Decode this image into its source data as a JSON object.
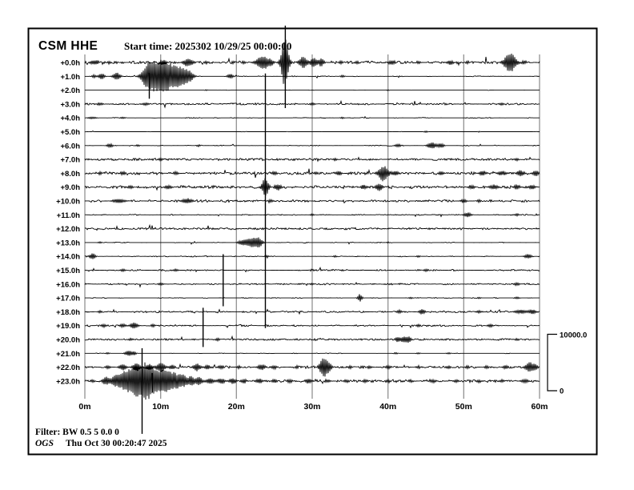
{
  "header": {
    "station": "CSM HHE",
    "start_time": "Start time: 2025302 10/29/25 00:00:00"
  },
  "scale_bar": {
    "max_label": "10000.0",
    "min_label": "0"
  },
  "footer": {
    "filter": "Filter: BW 0.5 5 0.0 0",
    "agency": "OGS",
    "generated": "Thu Oct 30 00:20:47 2025"
  },
  "colors": {
    "trace": "#000000",
    "grid": "#919191",
    "frame": "#000000",
    "background": "#ffffff"
  },
  "chart_data": {
    "type": "line",
    "subtype": "helicorder-24h",
    "title": "CSM HHE",
    "station": "CSM",
    "channel": "HHE",
    "start": "2025302 10/29/25 00:00:00",
    "x_axis": {
      "ticks": [
        "0m",
        "10m",
        "20m",
        "30m",
        "40m",
        "50m",
        "60m"
      ],
      "minutes_range": [
        0,
        60
      ],
      "grid": true
    },
    "scale": {
      "max": 10000.0,
      "min": 0
    },
    "rows": [
      {
        "label": "+0.0h",
        "amp": 1.4,
        "density": 0.9,
        "events": [
          [
            1,
            2.5,
            0.4
          ],
          [
            1.6,
            2.5,
            0.3
          ],
          [
            3.2,
            2,
            0.3
          ],
          [
            10.4,
            3,
            0.5
          ],
          [
            13.6,
            5,
            0.7
          ],
          [
            16,
            2,
            0.3
          ],
          [
            21,
            2,
            0.3
          ],
          [
            23.5,
            9,
            0.9
          ],
          [
            24.6,
            3,
            0.3
          ],
          [
            26.4,
            32,
            0.5
          ],
          [
            28.8,
            7,
            0.6
          ],
          [
            30.2,
            6,
            0.5
          ],
          [
            31.2,
            5,
            0.4
          ],
          [
            33.8,
            2.5,
            0.3
          ],
          [
            36,
            2,
            0.3
          ],
          [
            40.5,
            3,
            0.5
          ],
          [
            44,
            2,
            0.3
          ],
          [
            48.2,
            3,
            0.4
          ],
          [
            50.5,
            2,
            0.3
          ],
          [
            56.1,
            13,
            0.8
          ],
          [
            58,
            2.5,
            0.3
          ]
        ],
        "spikes": [
          [
            26.45,
            46,
            57
          ]
        ]
      },
      {
        "label": "+1.0h",
        "amp": 0.5,
        "density": 0.35,
        "events": [
          [
            1.2,
            2,
            0.3
          ],
          [
            2.2,
            4,
            0.4
          ],
          [
            4.2,
            5,
            0.5
          ],
          [
            8.2,
            10,
            0.8
          ],
          [
            9,
            12,
            1.0
          ],
          [
            10,
            11,
            0.9
          ],
          [
            10.8,
            12,
            0.9
          ],
          [
            11.8,
            9,
            0.8
          ],
          [
            12.8,
            10,
            0.8
          ],
          [
            13.8,
            6,
            0.6
          ],
          [
            19.2,
            3,
            0.4
          ],
          [
            34,
            1.5,
            0.3
          ]
        ],
        "spikes": [
          [
            8.5,
            4,
            28
          ]
        ]
      },
      {
        "label": "+2.0h",
        "amp": 0.25,
        "density": 0.08,
        "events": [
          [
            16,
            0.8,
            0.2
          ],
          [
            40,
            0.8,
            0.2
          ]
        ],
        "spikes": []
      },
      {
        "label": "+3.0h",
        "amp": 0.9,
        "density": 0.75,
        "events": [
          [
            2,
            1.5,
            0.5
          ],
          [
            8,
            1.5,
            0.5
          ],
          [
            30,
            1.5,
            0.4
          ],
          [
            55,
            1.5,
            0.4
          ]
        ],
        "spikes": []
      },
      {
        "label": "+4.0h",
        "amp": 0.45,
        "density": 0.3,
        "events": [
          [
            1,
            1.2,
            0.6
          ],
          [
            5,
            1,
            0.4
          ],
          [
            34,
            1,
            0.3
          ]
        ],
        "spikes": []
      },
      {
        "label": "+5.0h",
        "amp": 0.3,
        "density": 0.12,
        "events": [
          [
            45,
            1,
            0.3
          ],
          [
            52,
            0.8,
            0.2
          ]
        ],
        "spikes": []
      },
      {
        "label": "+6.0h",
        "amp": 0.5,
        "density": 0.3,
        "events": [
          [
            3.3,
            2.5,
            0.4
          ],
          [
            7,
            1.2,
            0.3
          ],
          [
            15,
            1.2,
            0.3
          ],
          [
            41.3,
            2,
            0.4
          ],
          [
            45.8,
            4,
            0.6
          ],
          [
            47,
            3,
            0.4
          ]
        ],
        "spikes": []
      },
      {
        "label": "+7.0h",
        "amp": 1.1,
        "density": 0.95,
        "events": [
          [
            10,
            1.5,
            0.4
          ],
          [
            33,
            1.5,
            0.3
          ],
          [
            57,
            1.5,
            0.3
          ]
        ],
        "spikes": []
      },
      {
        "label": "+8.0h",
        "amp": 1.5,
        "density": 0.9,
        "events": [
          [
            2,
            2,
            0.3
          ],
          [
            5,
            2.5,
            0.4
          ],
          [
            12,
            2,
            0.4
          ],
          [
            25,
            2.5,
            0.4
          ],
          [
            30.5,
            2,
            0.3
          ],
          [
            33.5,
            3,
            0.4
          ],
          [
            39.4,
            10,
            0.7
          ],
          [
            41,
            3,
            0.4
          ],
          [
            47,
            2.5,
            0.4
          ],
          [
            52.5,
            3,
            0.5
          ],
          [
            55,
            3,
            0.6
          ],
          [
            57.5,
            4,
            0.5
          ],
          [
            59.5,
            4,
            0.4
          ]
        ],
        "spikes": []
      },
      {
        "label": "+9.0h",
        "amp": 1.5,
        "density": 0.9,
        "events": [
          [
            6,
            2,
            0.4
          ],
          [
            11,
            2.5,
            0.5
          ],
          [
            23.8,
            12,
            0.45
          ],
          [
            25.5,
            4,
            0.5
          ],
          [
            36.8,
            3,
            0.4
          ],
          [
            38.8,
            5,
            0.5
          ],
          [
            51,
            2.5,
            0.5
          ],
          [
            54,
            3,
            0.6
          ],
          [
            57,
            3,
            0.5
          ],
          [
            59,
            3,
            0.4
          ]
        ],
        "spikes": [
          [
            23.82,
            142,
            176
          ]
        ]
      },
      {
        "label": "+10.0h",
        "amp": 1.1,
        "density": 0.8,
        "events": [
          [
            4.5,
            3,
            0.8
          ],
          [
            13.5,
            3.5,
            0.7
          ],
          [
            24.5,
            2,
            0.4
          ],
          [
            50,
            2.5,
            0.4
          ],
          [
            52,
            2,
            0.3
          ]
        ],
        "spikes": []
      },
      {
        "label": "+11.0h",
        "amp": 0.55,
        "density": 0.5,
        "events": [
          [
            30,
            1.2,
            0.3
          ],
          [
            50.5,
            3,
            0.5
          ],
          [
            57,
            1.5,
            0.3
          ]
        ],
        "spikes": []
      },
      {
        "label": "+12.0h",
        "amp": 1.0,
        "density": 0.97,
        "events": [],
        "spikes": []
      },
      {
        "label": "+13.0h",
        "amp": 0.45,
        "density": 0.25,
        "events": [
          [
            2,
            1,
            0.3
          ],
          [
            20.8,
            3,
            0.6
          ],
          [
            22,
            6,
            0.8
          ],
          [
            23,
            5,
            0.5
          ],
          [
            40,
            1,
            0.2
          ]
        ],
        "spikes": []
      },
      {
        "label": "+14.0h",
        "amp": 0.6,
        "density": 0.4,
        "events": [
          [
            1,
            4,
            0.4
          ],
          [
            24,
            1.5,
            0.3
          ],
          [
            33,
            1.2,
            0.3
          ],
          [
            44,
            1.2,
            0.3
          ],
          [
            58.5,
            3,
            0.5
          ]
        ],
        "spikes": []
      },
      {
        "label": "+15.0h",
        "amp": 0.8,
        "density": 0.55,
        "events": [
          [
            5,
            1.5,
            0.4
          ],
          [
            12,
            1.5,
            0.4
          ],
          [
            30,
            1.5,
            0.3
          ],
          [
            45,
            1.5,
            0.4
          ]
        ],
        "spikes": [
          [
            18.25,
            20,
            45
          ]
        ]
      },
      {
        "label": "+16.0h",
        "amp": 0.8,
        "density": 0.55,
        "events": [
          [
            10,
            1.5,
            0.4
          ],
          [
            30,
            1.2,
            0.3
          ],
          [
            57,
            2,
            0.4
          ]
        ],
        "spikes": []
      },
      {
        "label": "+17.0h",
        "amp": 0.4,
        "density": 0.25,
        "events": [
          [
            36.3,
            5,
            0.3
          ],
          [
            43,
            1,
            0.3
          ],
          [
            52,
            1,
            0.3
          ],
          [
            57,
            1.2,
            0.4
          ]
        ],
        "spikes": []
      },
      {
        "label": "+18.0h",
        "amp": 0.9,
        "density": 0.7,
        "events": [
          [
            2,
            1.5,
            0.3
          ],
          [
            41.5,
            2,
            0.4
          ],
          [
            44.5,
            3.5,
            0.4
          ],
          [
            52,
            1.5,
            0.5
          ],
          [
            57.5,
            2.5,
            0.8
          ],
          [
            59,
            3,
            0.5
          ]
        ],
        "spikes": [
          [
            15.6,
            5,
            44
          ]
        ]
      },
      {
        "label": "+19.0h",
        "amp": 0.9,
        "density": 0.7,
        "events": [
          [
            2.5,
            2,
            0.4
          ],
          [
            5,
            2.5,
            0.4
          ],
          [
            6.5,
            4,
            0.5
          ],
          [
            9,
            2,
            0.3
          ],
          [
            44,
            2,
            0.3
          ],
          [
            53.5,
            2,
            0.4
          ]
        ],
        "spikes": []
      },
      {
        "label": "+20.0h",
        "amp": 0.9,
        "density": 0.95,
        "events": [
          [
            6,
            1.5,
            0.3
          ],
          [
            17.5,
            2,
            0.3
          ],
          [
            41.3,
            3,
            0.4
          ],
          [
            42.2,
            4,
            0.5
          ],
          [
            42.8,
            3,
            0.3
          ],
          [
            57,
            1.5,
            0.3
          ]
        ],
        "spikes": []
      },
      {
        "label": "+21.0h",
        "amp": 0.4,
        "density": 0.25,
        "events": [
          [
            3,
            1,
            0.3
          ],
          [
            5.8,
            3.5,
            0.5
          ],
          [
            6.5,
            2,
            0.3
          ],
          [
            41,
            1,
            0.3
          ],
          [
            44,
            1,
            0.3
          ],
          [
            48,
            1,
            0.3
          ]
        ],
        "spikes": []
      },
      {
        "label": "+22.0h",
        "amp": 1.2,
        "density": 0.8,
        "events": [
          [
            3,
            2,
            0.4
          ],
          [
            5,
            4,
            0.5
          ],
          [
            6.8,
            5,
            0.5
          ],
          [
            8.5,
            4,
            0.4
          ],
          [
            10,
            6,
            0.6
          ],
          [
            11.5,
            3,
            0.4
          ],
          [
            14.8,
            5,
            0.5
          ],
          [
            16.2,
            3,
            0.4
          ],
          [
            18,
            2.5,
            0.4
          ],
          [
            20.3,
            2,
            0.3
          ],
          [
            23.3,
            4,
            0.5
          ],
          [
            25,
            2.5,
            0.4
          ],
          [
            28,
            2,
            0.3
          ],
          [
            31.5,
            12,
            0.55
          ],
          [
            32.2,
            5,
            0.4
          ],
          [
            35,
            2,
            0.3
          ],
          [
            37.5,
            2,
            0.3
          ],
          [
            40,
            2.5,
            0.4
          ],
          [
            44,
            2,
            0.3
          ],
          [
            48,
            2,
            0.3
          ],
          [
            50.5,
            2,
            0.3
          ],
          [
            53,
            2,
            0.3
          ],
          [
            55.5,
            2.5,
            0.4
          ],
          [
            58.7,
            7,
            0.6
          ],
          [
            59.5,
            3,
            0.3
          ]
        ],
        "spikes": []
      },
      {
        "label": "+23.0h",
        "amp": 1.5,
        "density": 0.9,
        "events": [
          [
            1,
            2,
            0.3
          ],
          [
            2.8,
            5,
            0.5
          ],
          [
            4,
            7,
            0.6
          ],
          [
            5,
            9,
            0.6
          ],
          [
            5.8,
            11,
            0.6
          ],
          [
            6.6,
            13,
            0.6
          ],
          [
            7.5,
            17,
            0.8
          ],
          [
            8.3,
            15,
            0.7
          ],
          [
            9,
            11,
            0.6
          ],
          [
            9.8,
            10,
            0.6
          ],
          [
            10.6,
            12,
            0.6
          ],
          [
            11.4,
            9,
            0.6
          ],
          [
            12.2,
            8,
            0.6
          ],
          [
            13,
            7,
            0.5
          ],
          [
            14,
            6,
            0.5
          ],
          [
            15,
            5,
            0.5
          ],
          [
            16.5,
            4,
            0.5
          ],
          [
            18,
            3.5,
            0.5
          ],
          [
            19.5,
            3.5,
            0.5
          ],
          [
            21,
            3,
            0.4
          ],
          [
            23,
            3,
            0.5
          ],
          [
            25,
            2.5,
            0.4
          ],
          [
            27,
            2.5,
            0.4
          ],
          [
            29.5,
            3,
            0.5
          ],
          [
            32,
            2,
            0.4
          ],
          [
            34.5,
            2,
            0.4
          ],
          [
            37,
            2,
            0.4
          ],
          [
            40,
            2,
            0.4
          ],
          [
            43,
            1.8,
            0.4
          ],
          [
            46,
            2,
            0.4
          ],
          [
            49,
            1.8,
            0.4
          ],
          [
            52,
            2,
            0.4
          ],
          [
            55,
            1.8,
            0.4
          ],
          [
            58,
            2.5,
            0.5
          ]
        ],
        "spikes": [
          [
            7.55,
            41,
            66
          ],
          [
            8.9,
            10,
            14
          ]
        ]
      }
    ]
  }
}
